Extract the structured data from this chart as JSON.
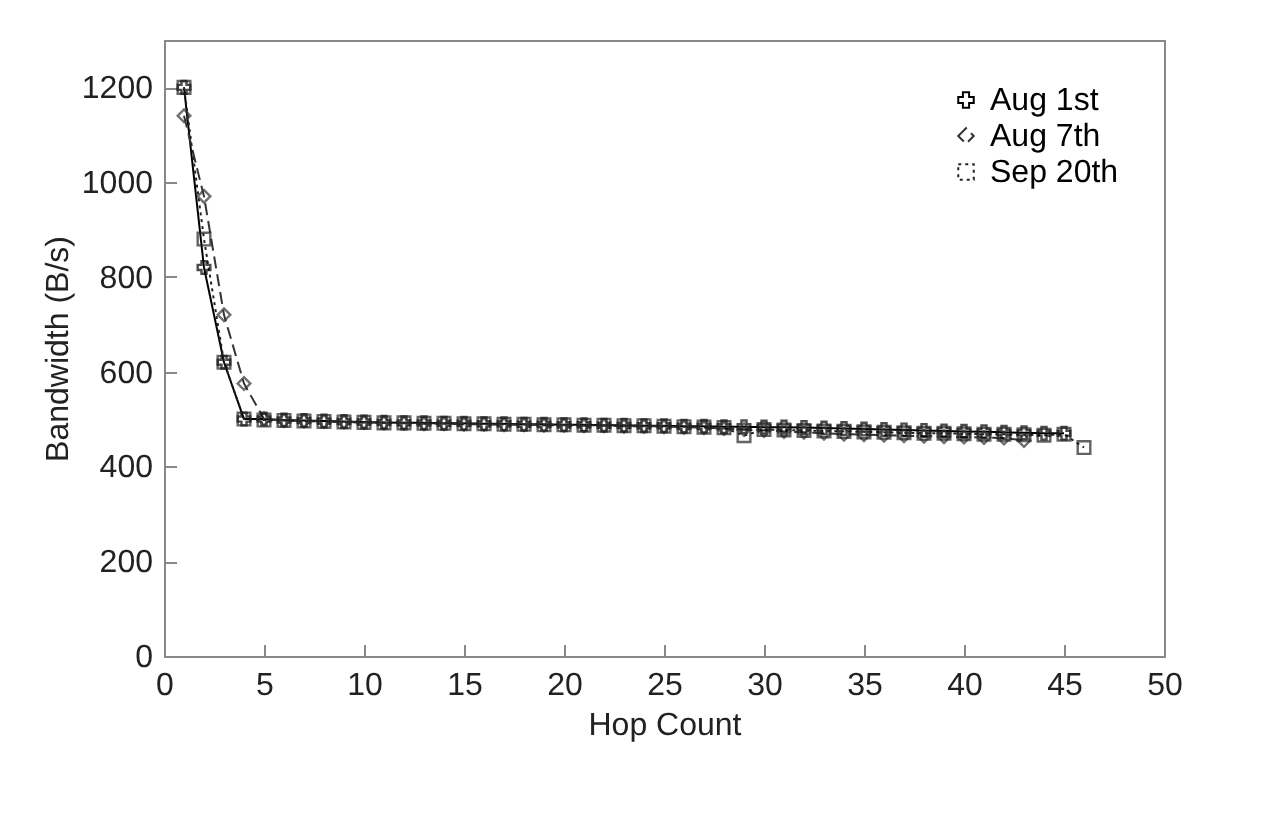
{
  "chart_data": {
    "type": "line",
    "xlabel": "Hop Count",
    "ylabel": "Bandwidth (B/s)",
    "xlim": [
      0,
      50
    ],
    "xticks": [
      0,
      5,
      10,
      15,
      20,
      25,
      30,
      35,
      40,
      45,
      50
    ],
    "ylim": [
      0,
      1300
    ],
    "yticks": [
      0,
      200,
      400,
      600,
      800,
      1000,
      1200
    ],
    "grid": false,
    "legend": "top right",
    "series": [
      {
        "name": "Aug 1st",
        "color": "#000000",
        "line_style": "solid",
        "marker": "cross",
        "x": [
          1,
          2,
          3,
          4,
          5,
          6,
          7,
          8,
          9,
          10,
          11,
          12,
          13,
          14,
          15,
          16,
          17,
          18,
          19,
          20,
          21,
          22,
          23,
          24,
          25,
          26,
          27,
          28,
          29,
          30,
          31,
          32,
          33,
          34,
          35,
          36,
          37,
          38,
          39,
          40,
          41,
          42,
          43,
          44,
          45
        ],
        "values": [
          1200,
          820,
          620,
          500,
          500,
          498,
          497,
          496,
          495,
          494,
          493,
          492,
          492,
          491,
          491,
          490,
          490,
          489,
          489,
          488,
          488,
          487,
          487,
          486,
          486,
          485,
          485,
          484,
          484,
          483,
          483,
          482,
          481,
          480,
          479,
          478,
          477,
          476,
          475,
          474,
          473,
          472,
          471,
          470,
          470
        ]
      },
      {
        "name": "Aug 7th",
        "color": "#333333",
        "line_style": "dashed",
        "marker": "diamond",
        "x": [
          1,
          2,
          3,
          4,
          5,
          6,
          7,
          8,
          9,
          10,
          11,
          12,
          13,
          14,
          15,
          16,
          17,
          18,
          19,
          20,
          21,
          22,
          23,
          24,
          25,
          26,
          27,
          28,
          29,
          30,
          31,
          32,
          33,
          34,
          35,
          36,
          37,
          38,
          39,
          40,
          41,
          42,
          43
        ],
        "values": [
          1140,
          970,
          720,
          575,
          500,
          497,
          496,
          495,
          494,
          493,
          492,
          491,
          490,
          490,
          489,
          489,
          488,
          488,
          487,
          487,
          486,
          486,
          485,
          485,
          484,
          483,
          482,
          480,
          478,
          476,
          474,
          472,
          470,
          468,
          467,
          466,
          465,
          464,
          463,
          462,
          461,
          460,
          455
        ]
      },
      {
        "name": "Sep 20th",
        "color": "#222222",
        "line_style": "dotted",
        "marker": "square",
        "x": [
          1,
          2,
          3,
          4,
          5,
          6,
          7,
          8,
          9,
          10,
          11,
          12,
          13,
          14,
          15,
          16,
          17,
          18,
          19,
          20,
          21,
          22,
          23,
          24,
          25,
          26,
          27,
          28,
          29,
          30,
          31,
          32,
          33,
          34,
          35,
          36,
          37,
          38,
          39,
          40,
          41,
          42,
          43,
          44,
          45,
          46
        ],
        "values": [
          1200,
          880,
          620,
          500,
          498,
          497,
          496,
          495,
          494,
          493,
          492,
          492,
          491,
          491,
          490,
          490,
          489,
          489,
          488,
          488,
          487,
          487,
          486,
          486,
          485,
          484,
          483,
          482,
          465,
          478,
          477,
          476,
          475,
          474,
          473,
          472,
          471,
          470,
          470,
          469,
          468,
          468,
          467,
          466,
          468,
          440
        ]
      }
    ]
  }
}
